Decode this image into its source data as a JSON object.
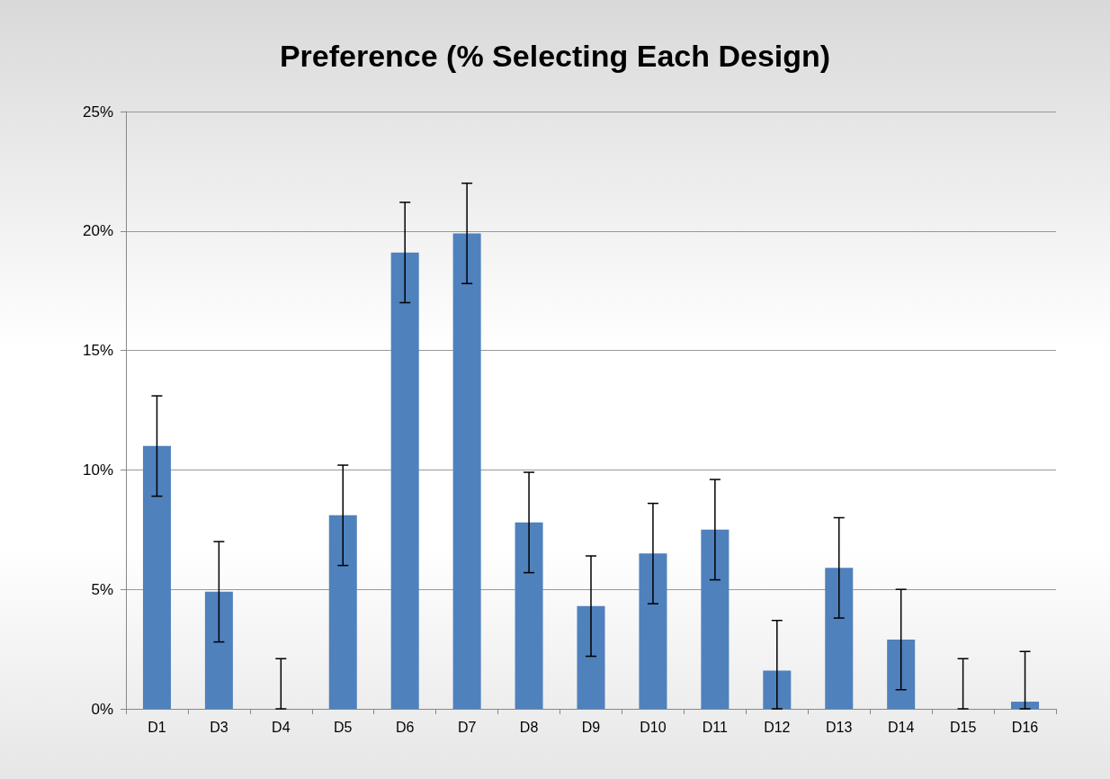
{
  "chart_data": {
    "type": "bar",
    "title": "Preference (% Selecting Each Design)",
    "categories": [
      "D1",
      "D3",
      "D4",
      "D5",
      "D6",
      "D7",
      "D8",
      "D9",
      "D10",
      "D11",
      "D12",
      "D13",
      "D14",
      "D15",
      "D16"
    ],
    "values": [
      11.0,
      4.9,
      0,
      8.1,
      19.1,
      19.9,
      7.8,
      4.3,
      6.5,
      7.5,
      1.6,
      5.9,
      2.9,
      0,
      0.3
    ],
    "errors": [
      2.1,
      2.1,
      [
        0,
        2.1
      ],
      2.1,
      2.1,
      2.1,
      2.1,
      2.1,
      2.1,
      2.1,
      [
        0,
        3.7
      ],
      2.1,
      2.1,
      [
        0,
        2.1
      ],
      [
        0,
        2.4
      ]
    ],
    "color": "#4f81bd",
    "ylim": [
      0,
      25
    ],
    "yticks": [
      {
        "value": 0,
        "label": "0%"
      },
      {
        "value": 5,
        "label": "5%"
      },
      {
        "value": 10,
        "label": "10%"
      },
      {
        "value": 15,
        "label": "15%"
      },
      {
        "value": 20,
        "label": "20%"
      },
      {
        "value": 25,
        "label": "25%"
      }
    ],
    "grid": "y"
  }
}
